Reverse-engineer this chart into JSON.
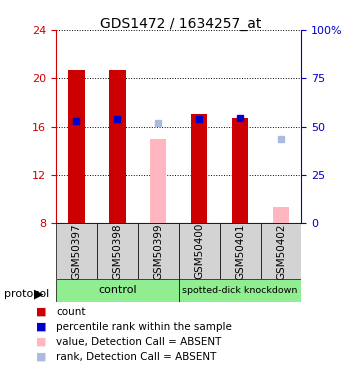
{
  "title": "GDS1472 / 1634257_at",
  "samples": [
    "GSM50397",
    "GSM50398",
    "GSM50399",
    "GSM50400",
    "GSM50401",
    "GSM50402"
  ],
  "bar_bottom": 8,
  "red_bar_tops": [
    20.7,
    20.7,
    null,
    17.0,
    16.7,
    null
  ],
  "pink_bar_tops": [
    null,
    null,
    15.0,
    null,
    null,
    9.3
  ],
  "blue_marker_y": [
    16.5,
    16.6,
    null,
    16.6,
    16.7,
    null
  ],
  "light_blue_marker_y": [
    null,
    null,
    16.3,
    null,
    null,
    15.0
  ],
  "ylim": [
    8,
    24
  ],
  "red_color": "#CC0000",
  "pink_color": "#FFB6C1",
  "blue_color": "#0000CC",
  "light_blue_color": "#AABBDD",
  "bar_width": 0.4,
  "group_bg_color": "#D3D3D3",
  "control_color": "#90EE90",
  "knockdown_color": "#90EE90",
  "left_axis_color": "#CC0000",
  "right_axis_color": "#0000CC",
  "right_tick_labels": [
    "0",
    "25",
    "50",
    "75",
    "100%"
  ],
  "right_tick_positions": [
    8,
    12,
    16,
    20,
    24
  ],
  "legend_items": [
    {
      "color": "#CC0000",
      "label": "count"
    },
    {
      "color": "#0000CC",
      "label": "percentile rank within the sample"
    },
    {
      "color": "#FFB6C1",
      "label": "value, Detection Call = ABSENT"
    },
    {
      "color": "#AABBDD",
      "label": "rank, Detection Call = ABSENT"
    }
  ]
}
